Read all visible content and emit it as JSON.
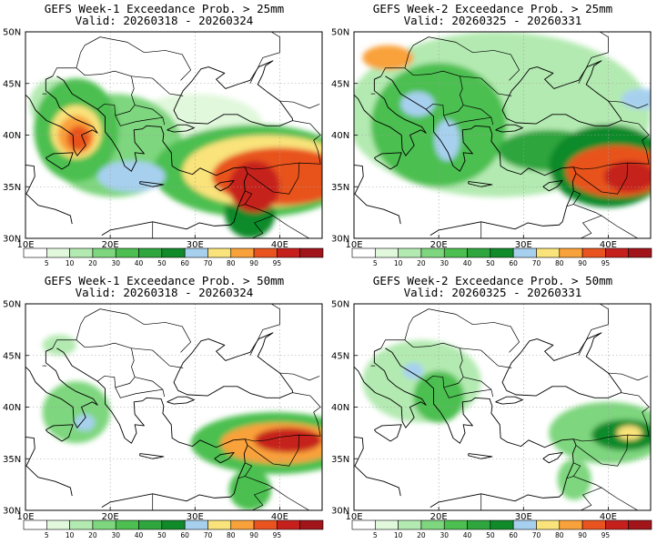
{
  "colors": {
    "levels": [
      0,
      5,
      10,
      20,
      30,
      40,
      50,
      60,
      70,
      80,
      90,
      95
    ],
    "fills": [
      "#ffffff",
      "#e1f8dc",
      "#b3eab1",
      "#7ed67e",
      "#4cbf50",
      "#2ea53d",
      "#118a2a",
      "#a7d0ef",
      "#f9e37a",
      "#f9a13a",
      "#e8531f",
      "#c6201c",
      "#a0141a"
    ],
    "coast": "#000000",
    "grid": "#a0a0a0"
  },
  "axes": {
    "lat_labels": [
      "50N",
      "45N",
      "40N",
      "35N",
      "30N"
    ],
    "lon_labels": [
      "10E",
      "20E",
      "30E",
      "40E"
    ],
    "colorbar_labels": [
      "5",
      "10",
      "20",
      "30",
      "40",
      "50",
      "60",
      "70",
      "80",
      "90",
      "95"
    ]
  },
  "panels": [
    {
      "title_line1": "GEFS Week-1 Exceedance Prob. > 25mm",
      "title_line2": "Valid: 20260318 - 20260324",
      "blobs": [
        {
          "lon": 20.5,
          "lat": 39.0,
          "rx": 8,
          "ry": 5,
          "level": 3
        },
        {
          "lon": 16.0,
          "lat": 40.5,
          "rx": 5,
          "ry": 5,
          "level": 4
        },
        {
          "lon": 16.0,
          "lat": 40.3,
          "rx": 3,
          "ry": 2.6,
          "level": 8
        },
        {
          "lon": 16.0,
          "lat": 40.0,
          "rx": 2.2,
          "ry": 1.9,
          "level": 9
        },
        {
          "lon": 16.3,
          "lat": 39.7,
          "rx": 1.4,
          "ry": 1.2,
          "level": 10
        },
        {
          "lon": 13.5,
          "lat": 43.0,
          "rx": 3,
          "ry": 2.5,
          "level": 2
        },
        {
          "lon": 22.5,
          "lat": 36.0,
          "rx": 4,
          "ry": 1.5,
          "level": 7
        },
        {
          "lon": 37.0,
          "lat": 36.5,
          "rx": 12,
          "ry": 4.5,
          "level": 4
        },
        {
          "lon": 38.5,
          "lat": 36.5,
          "rx": 10,
          "ry": 3.5,
          "level": 8
        },
        {
          "lon": 40.0,
          "lat": 36.0,
          "rx": 8,
          "ry": 2.8,
          "level": 10
        },
        {
          "lon": 37.0,
          "lat": 35.0,
          "rx": 3,
          "ry": 2.5,
          "level": 11
        },
        {
          "lon": 36.5,
          "lat": 32.5,
          "rx": 3,
          "ry": 2.5,
          "level": 6
        },
        {
          "lon": 30.0,
          "lat": 41.0,
          "rx": 8,
          "ry": 3,
          "level": 1
        }
      ]
    },
    {
      "title_line1": "GEFS Week-2 Exceedance Prob. > 25mm",
      "title_line2": "Valid: 20260325 - 20260331",
      "blobs": [
        {
          "lon": 27.0,
          "lat": 42.0,
          "rx": 18,
          "ry": 8,
          "level": 2
        },
        {
          "lon": 20.0,
          "lat": 41.0,
          "rx": 8,
          "ry": 6,
          "level": 4
        },
        {
          "lon": 14.0,
          "lat": 47.5,
          "rx": 3,
          "ry": 1.2,
          "level": 9
        },
        {
          "lon": 17.5,
          "lat": 43.0,
          "rx": 2,
          "ry": 1.2,
          "level": 7
        },
        {
          "lon": 21.0,
          "lat": 39.5,
          "rx": 1.5,
          "ry": 2,
          "level": 7
        },
        {
          "lon": 33.0,
          "lat": 38.5,
          "rx": 6,
          "ry": 2,
          "level": 5
        },
        {
          "lon": 40.0,
          "lat": 37.0,
          "rx": 7,
          "ry": 4,
          "level": 6
        },
        {
          "lon": 41.0,
          "lat": 36.5,
          "rx": 6,
          "ry": 2.5,
          "level": 10
        },
        {
          "lon": 42.5,
          "lat": 36.0,
          "rx": 3,
          "ry": 1.5,
          "level": 11
        },
        {
          "lon": 44.0,
          "lat": 43.5,
          "rx": 2.5,
          "ry": 1,
          "level": 7
        }
      ]
    },
    {
      "title_line1": "GEFS Week-1 Exceedance Prob. > 50mm",
      "title_line2": "Valid: 20260318 - 20260324",
      "blobs": [
        {
          "lon": 16.0,
          "lat": 39.5,
          "rx": 4,
          "ry": 3,
          "level": 3
        },
        {
          "lon": 17.0,
          "lat": 38.5,
          "rx": 1.2,
          "ry": 0.8,
          "level": 7
        },
        {
          "lon": 39.5,
          "lat": 36.5,
          "rx": 10,
          "ry": 3,
          "level": 4
        },
        {
          "lon": 40.0,
          "lat": 36.5,
          "rx": 7,
          "ry": 2,
          "level": 9
        },
        {
          "lon": 41.0,
          "lat": 36.8,
          "rx": 4,
          "ry": 1.2,
          "level": 11
        },
        {
          "lon": 36.5,
          "lat": 32.0,
          "rx": 2.5,
          "ry": 2,
          "level": 4
        },
        {
          "lon": 14.0,
          "lat": 46.0,
          "rx": 2,
          "ry": 1,
          "level": 2
        }
      ]
    },
    {
      "title_line1": "GEFS Week-2 Exceedance Prob. > 50mm",
      "title_line2": "Valid: 20260325 - 20260331",
      "blobs": [
        {
          "lon": 18.0,
          "lat": 42.5,
          "rx": 7,
          "ry": 4,
          "level": 2
        },
        {
          "lon": 20.0,
          "lat": 41.0,
          "rx": 3,
          "ry": 2.5,
          "level": 4
        },
        {
          "lon": 17.0,
          "lat": 43.5,
          "rx": 1.2,
          "ry": 0.8,
          "level": 7
        },
        {
          "lon": 40.0,
          "lat": 37.5,
          "rx": 7,
          "ry": 3,
          "level": 3
        },
        {
          "lon": 42.0,
          "lat": 37.3,
          "rx": 4,
          "ry": 1.5,
          "level": 6
        },
        {
          "lon": 42.5,
          "lat": 37.5,
          "rx": 1.5,
          "ry": 0.7,
          "level": 8
        },
        {
          "lon": 36.0,
          "lat": 33.0,
          "rx": 2,
          "ry": 2,
          "level": 3
        }
      ]
    }
  ]
}
